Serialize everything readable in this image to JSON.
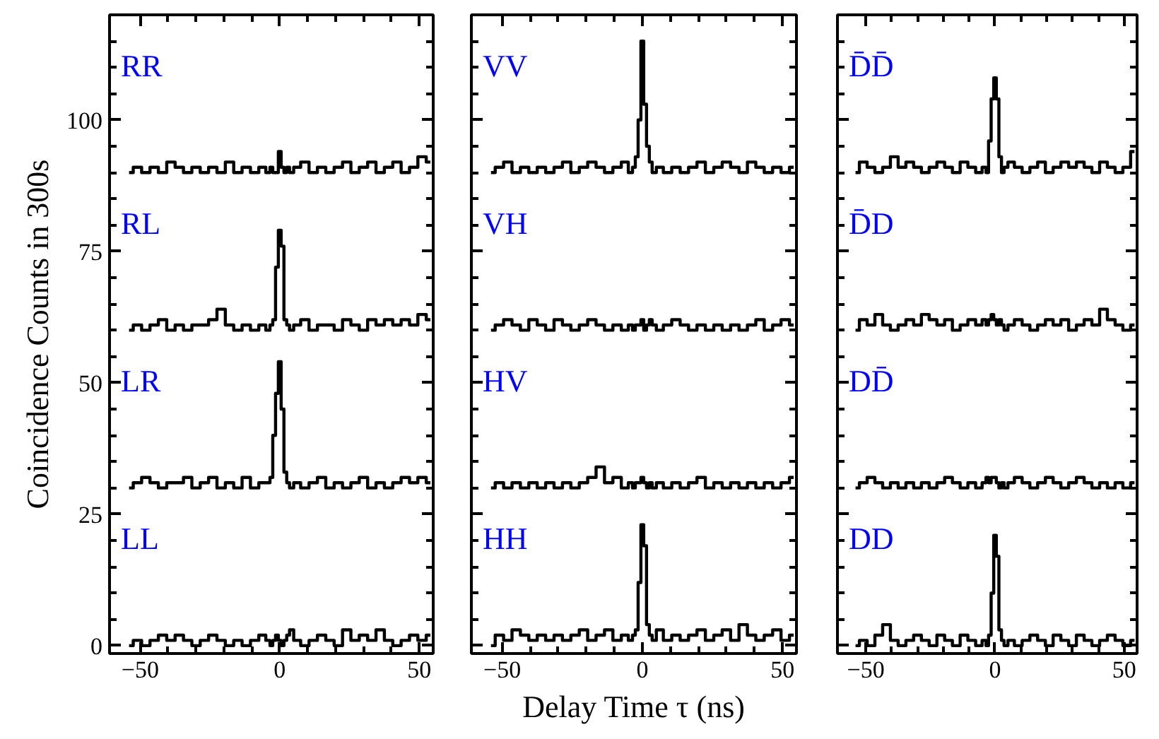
{
  "chart_data": [
    {
      "type": "step",
      "legend": "left",
      "ylabel": "Coincidence Counts in 300s",
      "xlim": [
        -61,
        55
      ],
      "ylim": [
        -1.5,
        120
      ],
      "xticks": [
        -50,
        0,
        50,
        {
          "value": -40,
          "label": null
        },
        {
          "value": -30,
          "label": null
        },
        {
          "value": -20,
          "label": null
        },
        {
          "value": -10,
          "label": null
        },
        {
          "value": 10,
          "label": null
        },
        {
          "value": 20,
          "label": null
        },
        {
          "value": 30,
          "label": null
        },
        {
          "value": 40,
          "label": null
        }
      ],
      "yticks": [
        0,
        25,
        50,
        75,
        100,
        {
          "value": 5,
          "label": null
        },
        {
          "value": 10,
          "label": null
        },
        {
          "value": 15,
          "label": null
        },
        {
          "value": 20,
          "label": null
        },
        {
          "value": 30,
          "label": null
        },
        {
          "value": 35,
          "label": null
        },
        {
          "value": 40,
          "label": null
        },
        {
          "value": 45,
          "label": null
        },
        {
          "value": 55,
          "label": null
        },
        {
          "value": 60,
          "label": null
        },
        {
          "value": 65,
          "label": null
        },
        {
          "value": 70,
          "label": null
        },
        {
          "value": 80,
          "label": null
        },
        {
          "value": 85,
          "label": null
        },
        {
          "value": 90,
          "label": null
        },
        {
          "value": 95,
          "label": null
        },
        {
          "value": 105,
          "label": null
        },
        {
          "value": 110,
          "label": null
        },
        {
          "value": 115,
          "label": null
        }
      ],
      "x": [
        -54,
        -51,
        -48,
        -45,
        -42,
        -39,
        -36,
        -33,
        -30,
        -27,
        -24,
        -21,
        -18,
        -15,
        -12,
        -9,
        -6,
        -4,
        -3,
        -2,
        -1,
        0,
        1,
        2,
        3,
        4,
        6,
        9,
        12,
        15,
        18,
        21,
        24,
        27,
        30,
        33,
        36,
        39,
        42,
        45,
        48,
        51,
        54
      ],
      "series": [
        {
          "name": "RR",
          "color": "#000000",
          "values": [
            90,
            91,
            90,
            91,
            90,
            92,
            91,
            90,
            91,
            90,
            91,
            90,
            92,
            90,
            91,
            90,
            91,
            90,
            91,
            90,
            90,
            94,
            91,
            90,
            91,
            90,
            91,
            92,
            90,
            91,
            90,
            91,
            92,
            90,
            91,
            92,
            90,
            91,
            92,
            90,
            91,
            93,
            92
          ]
        },
        {
          "name": "RL",
          "color": "#000000",
          "values": [
            60,
            61,
            60,
            61,
            62,
            60,
            61,
            60,
            61,
            61,
            62,
            64,
            61,
            60,
            61,
            60,
            61,
            60,
            61,
            62,
            72,
            79,
            76,
            62,
            61,
            60,
            61,
            62,
            60,
            61,
            61,
            60,
            62,
            61,
            60,
            62,
            61,
            62,
            61,
            62,
            61,
            63,
            62
          ]
        },
        {
          "name": "LR",
          "color": "#000000",
          "values": [
            30,
            31,
            32,
            31,
            30,
            31,
            31,
            32,
            30,
            31,
            32,
            30,
            31,
            30,
            32,
            30,
            31,
            31,
            32,
            40,
            48,
            54,
            45,
            33,
            31,
            30,
            31,
            30,
            31,
            32,
            30,
            31,
            30,
            31,
            32,
            30,
            31,
            30,
            31,
            32,
            31,
            32,
            31
          ]
        },
        {
          "name": "LL",
          "color": "#000000",
          "values": [
            0,
            1,
            0,
            1,
            2,
            1,
            2,
            1,
            0,
            1,
            2,
            1,
            0,
            1,
            0,
            1,
            2,
            1,
            0,
            1,
            2,
            1,
            0,
            1,
            2,
            3,
            1,
            0,
            1,
            2,
            1,
            0,
            3,
            1,
            2,
            1,
            3,
            1,
            0,
            1,
            2,
            1,
            2
          ]
        }
      ]
    },
    {
      "type": "step",
      "legend": "left",
      "xlabel": "Delay Time τ (ns)",
      "tick_labels": "x",
      "xlim": [
        -61,
        55
      ],
      "ylim": [
        -1.5,
        120
      ],
      "xticks": [
        -50,
        0,
        50,
        {
          "value": -40,
          "label": null
        },
        {
          "value": -30,
          "label": null
        },
        {
          "value": -20,
          "label": null
        },
        {
          "value": -10,
          "label": null
        },
        {
          "value": 10,
          "label": null
        },
        {
          "value": 20,
          "label": null
        },
        {
          "value": 30,
          "label": null
        },
        {
          "value": 40,
          "label": null
        }
      ],
      "yticks": [
        0,
        25,
        50,
        75,
        100,
        {
          "value": 5,
          "label": null
        },
        {
          "value": 10,
          "label": null
        },
        {
          "value": 15,
          "label": null
        },
        {
          "value": 20,
          "label": null
        },
        {
          "value": 30,
          "label": null
        },
        {
          "value": 35,
          "label": null
        },
        {
          "value": 40,
          "label": null
        },
        {
          "value": 45,
          "label": null
        },
        {
          "value": 55,
          "label": null
        },
        {
          "value": 60,
          "label": null
        },
        {
          "value": 65,
          "label": null
        },
        {
          "value": 70,
          "label": null
        },
        {
          "value": 80,
          "label": null
        },
        {
          "value": 85,
          "label": null
        },
        {
          "value": 90,
          "label": null
        },
        {
          "value": 95,
          "label": null
        },
        {
          "value": 105,
          "label": null
        },
        {
          "value": 110,
          "label": null
        },
        {
          "value": 115,
          "label": null
        }
      ],
      "x": [
        -54,
        -51,
        -48,
        -45,
        -42,
        -39,
        -36,
        -33,
        -30,
        -27,
        -24,
        -21,
        -18,
        -15,
        -12,
        -9,
        -6,
        -4,
        -3,
        -2,
        -1,
        0,
        1,
        2,
        3,
        4,
        6,
        9,
        12,
        15,
        18,
        21,
        24,
        27,
        30,
        33,
        36,
        39,
        42,
        45,
        48,
        51,
        54
      ],
      "series": [
        {
          "name": "VV",
          "color": "#000000",
          "values": [
            90,
            91,
            92,
            90,
            91,
            90,
            91,
            90,
            91,
            92,
            90,
            91,
            92,
            91,
            90,
            91,
            92,
            90,
            91,
            93,
            100,
            115,
            103,
            95,
            92,
            90,
            91,
            90,
            91,
            90,
            91,
            92,
            90,
            91,
            92,
            91,
            90,
            92,
            91,
            90,
            91,
            90,
            91
          ]
        },
        {
          "name": "VH",
          "color": "#000000",
          "values": [
            60,
            61,
            62,
            61,
            60,
            62,
            61,
            60,
            62,
            61,
            60,
            61,
            62,
            61,
            60,
            61,
            60,
            61,
            60,
            61,
            61,
            62,
            60,
            61,
            62,
            61,
            60,
            61,
            62,
            61,
            60,
            61,
            60,
            61,
            60,
            61,
            60,
            61,
            62,
            60,
            61,
            62,
            61
          ]
        },
        {
          "name": "HV",
          "color": "#000000",
          "values": [
            30,
            31,
            30,
            31,
            30,
            31,
            30,
            31,
            30,
            31,
            30,
            31,
            32,
            34,
            31,
            32,
            30,
            31,
            30,
            31,
            31,
            32,
            31,
            30,
            31,
            30,
            31,
            30,
            31,
            30,
            31,
            32,
            30,
            31,
            30,
            31,
            30,
            31,
            30,
            31,
            30,
            31,
            32
          ]
        },
        {
          "name": "HH",
          "color": "#000000",
          "values": [
            0,
            2,
            1,
            3,
            2,
            1,
            2,
            1,
            2,
            1,
            2,
            3,
            1,
            2,
            3,
            1,
            2,
            1,
            2,
            3,
            12,
            23,
            19,
            4,
            2,
            1,
            3,
            1,
            2,
            1,
            2,
            3,
            1,
            2,
            3,
            1,
            4,
            2,
            1,
            2,
            3,
            1,
            2
          ]
        }
      ]
    },
    {
      "type": "step",
      "legend": "left",
      "tick_labels": "x",
      "xlim": [
        -61,
        55
      ],
      "ylim": [
        -1.5,
        120
      ],
      "xticks": [
        -50,
        0,
        50,
        {
          "value": -40,
          "label": null
        },
        {
          "value": -30,
          "label": null
        },
        {
          "value": -20,
          "label": null
        },
        {
          "value": -10,
          "label": null
        },
        {
          "value": 10,
          "label": null
        },
        {
          "value": 20,
          "label": null
        },
        {
          "value": 30,
          "label": null
        },
        {
          "value": 40,
          "label": null
        }
      ],
      "yticks": [
        0,
        25,
        50,
        75,
        100,
        {
          "value": 5,
          "label": null
        },
        {
          "value": 10,
          "label": null
        },
        {
          "value": 15,
          "label": null
        },
        {
          "value": 20,
          "label": null
        },
        {
          "value": 30,
          "label": null
        },
        {
          "value": 35,
          "label": null
        },
        {
          "value": 40,
          "label": null
        },
        {
          "value": 45,
          "label": null
        },
        {
          "value": 55,
          "label": null
        },
        {
          "value": 60,
          "label": null
        },
        {
          "value": 65,
          "label": null
        },
        {
          "value": 70,
          "label": null
        },
        {
          "value": 80,
          "label": null
        },
        {
          "value": 85,
          "label": null
        },
        {
          "value": 90,
          "label": null
        },
        {
          "value": 95,
          "label": null
        },
        {
          "value": 105,
          "label": null
        },
        {
          "value": 110,
          "label": null
        },
        {
          "value": 115,
          "label": null
        }
      ],
      "x": [
        -54,
        -51,
        -48,
        -45,
        -42,
        -39,
        -36,
        -33,
        -30,
        -27,
        -24,
        -21,
        -18,
        -15,
        -12,
        -9,
        -6,
        -4,
        -3,
        -2,
        -1,
        0,
        1,
        2,
        3,
        4,
        6,
        9,
        12,
        15,
        18,
        21,
        24,
        27,
        30,
        33,
        36,
        39,
        42,
        45,
        48,
        51,
        54
      ],
      "series": [
        {
          "name": "D̄D̄",
          "color": "#000000",
          "values": [
            90,
            92,
            91,
            90,
            91,
            93,
            91,
            92,
            91,
            90,
            91,
            92,
            91,
            90,
            92,
            91,
            90,
            91,
            90,
            96,
            104,
            108,
            104,
            93,
            90,
            91,
            92,
            91,
            90,
            91,
            92,
            90,
            91,
            92,
            91,
            92,
            91,
            90,
            92,
            91,
            90,
            91,
            94
          ]
        },
        {
          "name": "D̄D",
          "color": "#000000",
          "values": [
            60,
            62,
            61,
            63,
            61,
            60,
            61,
            62,
            61,
            63,
            62,
            61,
            62,
            60,
            61,
            62,
            61,
            62,
            61,
            62,
            63,
            62,
            61,
            62,
            61,
            60,
            61,
            62,
            61,
            60,
            61,
            62,
            61,
            62,
            60,
            61,
            62,
            61,
            64,
            62,
            61,
            60,
            61
          ]
        },
        {
          "name": "DD̄",
          "color": "#000000",
          "values": [
            30,
            31,
            32,
            31,
            30,
            31,
            30,
            31,
            30,
            31,
            30,
            31,
            32,
            31,
            30,
            31,
            30,
            31,
            32,
            31,
            32,
            32,
            31,
            30,
            31,
            30,
            31,
            32,
            31,
            30,
            31,
            32,
            31,
            30,
            31,
            32,
            31,
            30,
            31,
            30,
            31,
            30,
            31
          ]
        },
        {
          "name": "DD",
          "color": "#000000",
          "values": [
            0,
            1,
            0,
            2,
            4,
            1,
            0,
            1,
            2,
            1,
            0,
            2,
            1,
            0,
            2,
            1,
            0,
            1,
            0,
            2,
            10,
            21,
            17,
            3,
            1,
            0,
            1,
            0,
            1,
            2,
            1,
            0,
            2,
            1,
            0,
            2,
            1,
            0,
            1,
            2,
            1,
            0,
            1
          ]
        }
      ]
    }
  ]
}
